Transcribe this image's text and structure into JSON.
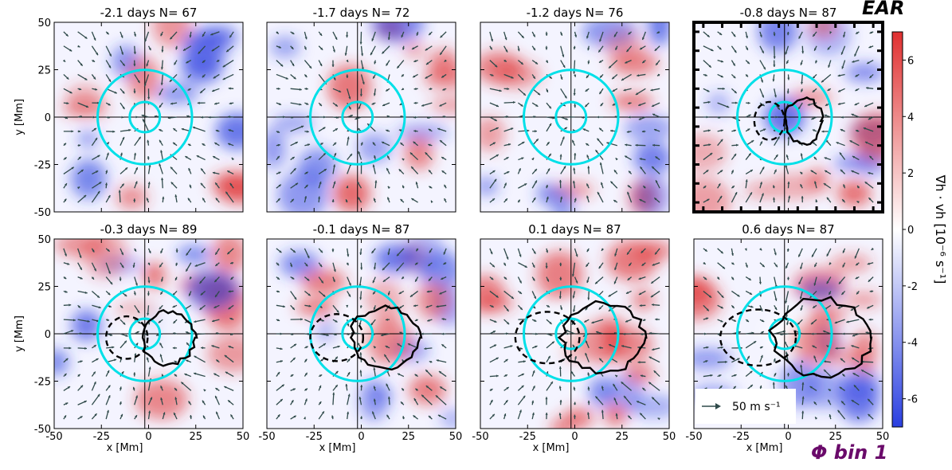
{
  "labels": {
    "top_right": "EAR",
    "bottom_right": "Φ bin 1",
    "colorbar_label": "∇h · vh  [10⁻⁶ s⁻¹]",
    "arrow_key": "50 m s⁻¹"
  },
  "colors": {
    "positive": "#e03030",
    "negative": "#2a3fe0",
    "arrows": "#2f4a4a",
    "rings": "#00e0e8",
    "contours": "#000000"
  },
  "chart_data": [
    {
      "type": "heatmap",
      "title": "-2.1 days  N= 67",
      "time_days": -2.1,
      "N": 67,
      "highlighted": false,
      "xlabel": "",
      "ylabel": "y [Mm]",
      "xlim": [
        -50,
        50
      ],
      "ylim": [
        -50,
        50
      ],
      "xticks": [],
      "yticks": [
        "-50",
        "-25",
        "0",
        "25",
        "50"
      ],
      "contour_solid": false,
      "contour_dashed": false,
      "ring_center_x": -2,
      "ring_radii": [
        8,
        25
      ]
    },
    {
      "type": "heatmap",
      "title": "-1.7 days  N= 72",
      "time_days": -1.7,
      "N": 72,
      "highlighted": false,
      "xlabel": "",
      "ylabel": "",
      "xlim": [
        -50,
        50
      ],
      "ylim": [
        -50,
        50
      ],
      "xticks": [],
      "yticks": [],
      "contour_solid": false,
      "contour_dashed": false,
      "ring_center_x": -2,
      "ring_radii": [
        8,
        25
      ]
    },
    {
      "type": "heatmap",
      "title": "-1.2 days  N= 76",
      "time_days": -1.2,
      "N": 76,
      "highlighted": false,
      "xlabel": "",
      "ylabel": "",
      "xlim": [
        -50,
        50
      ],
      "ylim": [
        -50,
        50
      ],
      "xticks": [],
      "yticks": [],
      "contour_solid": false,
      "contour_dashed": false,
      "ring_center_x": -2,
      "ring_radii": [
        8,
        25
      ]
    },
    {
      "type": "heatmap",
      "title": "-0.8 days  N= 87",
      "time_days": -0.8,
      "N": 87,
      "highlighted": true,
      "xlabel": "",
      "ylabel": "",
      "xlim": [
        -50,
        50
      ],
      "ylim": [
        -50,
        50
      ],
      "xticks": [],
      "yticks": [],
      "contour_solid": true,
      "contour_dashed": true,
      "ring_center_x": -2,
      "ring_radii": [
        8,
        25
      ]
    },
    {
      "type": "heatmap",
      "title": "-0.3 days  N= 89",
      "time_days": -0.3,
      "N": 89,
      "highlighted": false,
      "xlabel": "x [Mm]",
      "ylabel": "y [Mm]",
      "xlim": [
        -50,
        50
      ],
      "ylim": [
        -50,
        50
      ],
      "xticks": [
        "-50",
        "-25",
        "0",
        "25",
        "50"
      ],
      "yticks": [
        "-50",
        "-25",
        "0",
        "25",
        "50"
      ],
      "contour_solid": true,
      "contour_dashed": true,
      "ring_center_x": -2,
      "ring_radii": [
        8,
        25
      ]
    },
    {
      "type": "heatmap",
      "title": "-0.1 days  N= 87",
      "time_days": -0.1,
      "N": 87,
      "highlighted": false,
      "xlabel": "x [Mm]",
      "ylabel": "",
      "xlim": [
        -50,
        50
      ],
      "ylim": [
        -50,
        50
      ],
      "xticks": [
        "-50",
        "-25",
        "0",
        "25",
        "50"
      ],
      "yticks": [],
      "contour_solid": true,
      "contour_dashed": true,
      "ring_center_x": -2,
      "ring_radii": [
        8,
        25
      ]
    },
    {
      "type": "heatmap",
      "title": "0.1 days  N= 87",
      "time_days": 0.1,
      "N": 87,
      "highlighted": false,
      "xlabel": "x [Mm]",
      "ylabel": "",
      "xlim": [
        -50,
        50
      ],
      "ylim": [
        -50,
        50
      ],
      "xticks": [
        "-50",
        "-25",
        "0",
        "25",
        "50"
      ],
      "yticks": [],
      "contour_solid": true,
      "contour_dashed": true,
      "ring_center_x": -2,
      "ring_radii": [
        8,
        25
      ]
    },
    {
      "type": "heatmap",
      "title": "0.6 days  N= 87",
      "time_days": 0.6,
      "N": 87,
      "highlighted": false,
      "xlabel": "x [Mm]",
      "ylabel": "",
      "xlim": [
        -50,
        50
      ],
      "ylim": [
        -50,
        50
      ],
      "xticks": [
        "-50",
        "-25",
        "0",
        "25",
        "50"
      ],
      "yticks": [],
      "contour_solid": true,
      "contour_dashed": true,
      "ring_center_x": -2,
      "ring_radii": [
        8,
        25
      ],
      "has_arrow_key": true
    },
    {
      "type": "colorbar",
      "ylabel": "∇h · vh  [10⁻⁶ s⁻¹]",
      "ylim": [
        -7,
        7
      ],
      "ticks": [
        "-6",
        "-4",
        "-2",
        "0",
        "2",
        "4",
        "6"
      ],
      "colormap": [
        "#2a3fe0",
        "#ffffff",
        "#e03030"
      ]
    }
  ]
}
